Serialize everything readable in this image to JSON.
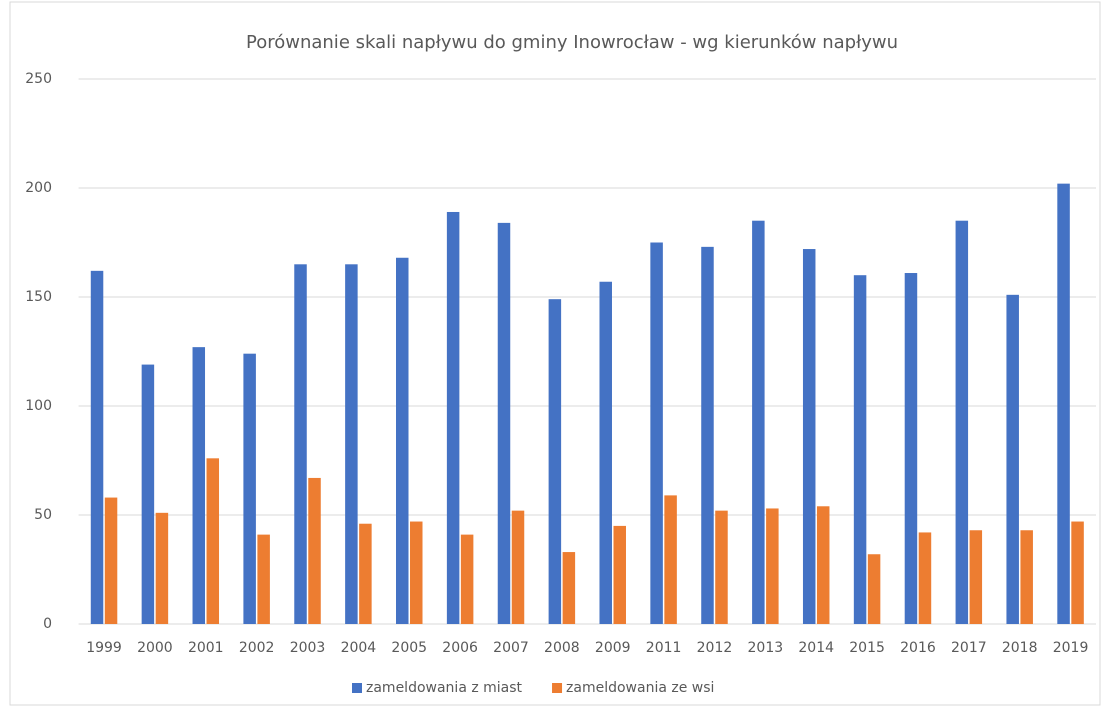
{
  "chart_data": {
    "type": "bar",
    "title": "Porównanie skali napływu do gminy Inowrocław - wg kierunków napływu",
    "categories": [
      "1999",
      "2000",
      "2001",
      "2002",
      "2003",
      "2004",
      "2005",
      "2006",
      "2007",
      "2008",
      "2009",
      "2011",
      "2012",
      "2013",
      "2014",
      "2015",
      "2016",
      "2017",
      "2018",
      "2019"
    ],
    "series": [
      {
        "name": "zameldowania z miast",
        "color": "#4472c4",
        "values": [
          162,
          119,
          127,
          124,
          165,
          165,
          168,
          189,
          184,
          149,
          157,
          175,
          173,
          185,
          172,
          160,
          161,
          185,
          151,
          202
        ]
      },
      {
        "name": "zameldowania ze wsi",
        "color": "#ed7d31",
        "values": [
          58,
          51,
          76,
          41,
          67,
          46,
          47,
          41,
          52,
          33,
          45,
          59,
          52,
          53,
          54,
          32,
          42,
          43,
          43,
          47
        ]
      }
    ],
    "ylim": [
      0,
      250
    ],
    "yticks": [
      0,
      50,
      100,
      150,
      200,
      250
    ],
    "grid": true,
    "legend": "bottom"
  }
}
